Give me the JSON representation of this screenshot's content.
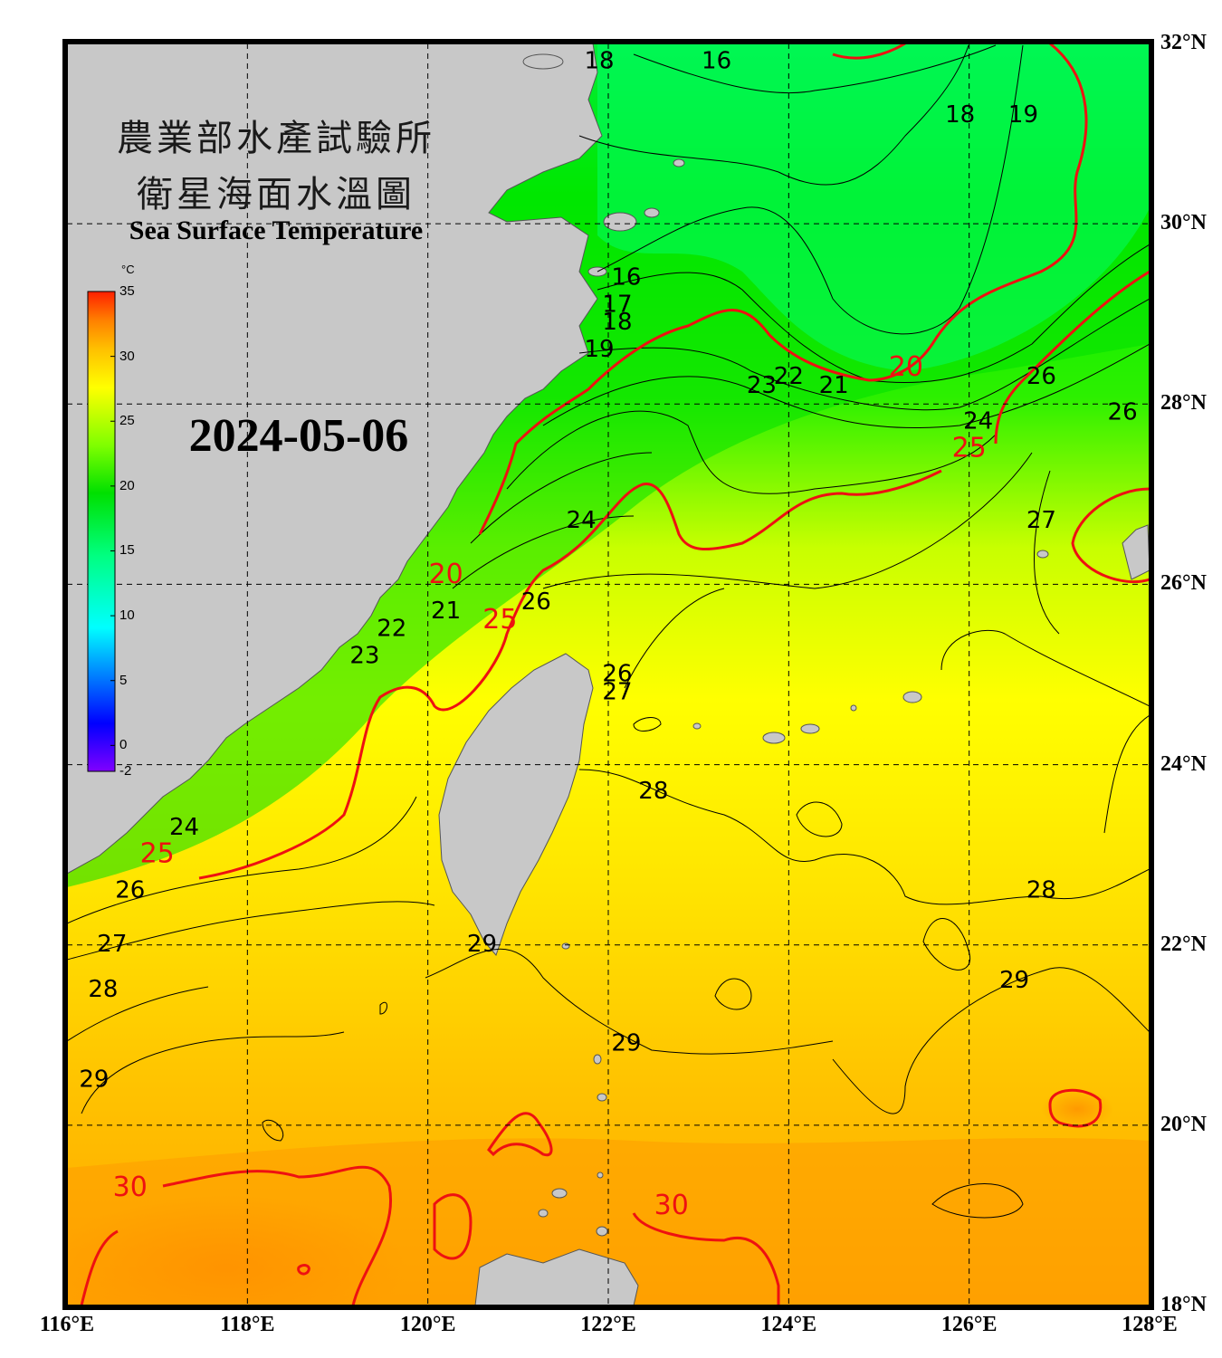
{
  "title_cn_line1": "農業部水產試驗所",
  "title_cn_line2": "衛星海面水溫圖",
  "title_en": "Sea Surface Temperature",
  "date": "2024-05-06",
  "colorbar": {
    "unit": "°C",
    "min": -2,
    "max": 35,
    "ticks": [
      "35",
      "30",
      "25",
      "20",
      "15",
      "10",
      "5",
      "0",
      "-2"
    ],
    "stops": [
      "#8000ff",
      "#0000ff",
      "#0080ff",
      "#00ffff",
      "#00ff80",
      "#00e000",
      "#80ff00",
      "#ffff00",
      "#ffc000",
      "#ff8000",
      "#ff2000"
    ]
  },
  "lon_labels": [
    "116°E",
    "118°E",
    "120°E",
    "122°E",
    "124°E",
    "126°E",
    "128°E"
  ],
  "lat_labels": [
    "32°N",
    "30°N",
    "28°N",
    "26°N",
    "24°N",
    "22°N",
    "20°N",
    "18°N"
  ],
  "contour_labels": [
    {
      "text": "16",
      "lon": 123.2,
      "lat": 31.8,
      "major": false
    },
    {
      "text": "18",
      "lon": 121.9,
      "lat": 31.8,
      "major": false
    },
    {
      "text": "18",
      "lon": 125.9,
      "lat": 31.2,
      "major": false
    },
    {
      "text": "19",
      "lon": 126.6,
      "lat": 31.2,
      "major": false
    },
    {
      "text": "16",
      "lon": 122.2,
      "lat": 29.4,
      "major": false
    },
    {
      "text": "17",
      "lon": 122.1,
      "lat": 29.1,
      "major": false
    },
    {
      "text": "18",
      "lon": 122.1,
      "lat": 28.9,
      "major": false
    },
    {
      "text": "19",
      "lon": 121.9,
      "lat": 28.6,
      "major": false
    },
    {
      "text": "23",
      "lon": 123.7,
      "lat": 28.2,
      "major": false
    },
    {
      "text": "22",
      "lon": 124.0,
      "lat": 28.3,
      "major": false
    },
    {
      "text": "21",
      "lon": 124.5,
      "lat": 28.2,
      "major": false
    },
    {
      "text": "20",
      "lon": 125.3,
      "lat": 28.4,
      "major": true
    },
    {
      "text": "24",
      "lon": 126.1,
      "lat": 27.8,
      "major": false
    },
    {
      "text": "25",
      "lon": 126.0,
      "lat": 27.5,
      "major": true
    },
    {
      "text": "26",
      "lon": 126.8,
      "lat": 28.3,
      "major": false
    },
    {
      "text": "26",
      "lon": 127.7,
      "lat": 27.9,
      "major": false
    },
    {
      "text": "27",
      "lon": 126.8,
      "lat": 26.7,
      "major": false
    },
    {
      "text": "24",
      "lon": 121.7,
      "lat": 26.7,
      "major": false
    },
    {
      "text": "20",
      "lon": 120.2,
      "lat": 26.1,
      "major": true
    },
    {
      "text": "26",
      "lon": 121.2,
      "lat": 25.8,
      "major": false
    },
    {
      "text": "25",
      "lon": 120.8,
      "lat": 25.6,
      "major": true
    },
    {
      "text": "21",
      "lon": 120.2,
      "lat": 25.7,
      "major": false
    },
    {
      "text": "22",
      "lon": 119.6,
      "lat": 25.5,
      "major": false
    },
    {
      "text": "23",
      "lon": 119.3,
      "lat": 25.2,
      "major": false
    },
    {
      "text": "26",
      "lon": 122.1,
      "lat": 25.0,
      "major": false
    },
    {
      "text": "27",
      "lon": 122.1,
      "lat": 24.8,
      "major": false
    },
    {
      "text": "28",
      "lon": 122.5,
      "lat": 23.7,
      "major": false
    },
    {
      "text": "24",
      "lon": 117.3,
      "lat": 23.3,
      "major": false
    },
    {
      "text": "25",
      "lon": 117.0,
      "lat": 23.0,
      "major": true
    },
    {
      "text": "26",
      "lon": 116.7,
      "lat": 22.6,
      "major": false
    },
    {
      "text": "27",
      "lon": 116.5,
      "lat": 22.0,
      "major": false
    },
    {
      "text": "28",
      "lon": 116.4,
      "lat": 21.5,
      "major": false
    },
    {
      "text": "28",
      "lon": 126.8,
      "lat": 22.6,
      "major": false
    },
    {
      "text": "29",
      "lon": 120.6,
      "lat": 22.0,
      "major": false
    },
    {
      "text": "29",
      "lon": 126.5,
      "lat": 21.6,
      "major": false
    },
    {
      "text": "29",
      "lon": 122.2,
      "lat": 20.9,
      "major": false
    },
    {
      "text": "29",
      "lon": 116.3,
      "lat": 20.5,
      "major": false
    },
    {
      "text": "30",
      "lon": 116.7,
      "lat": 19.3,
      "major": true
    },
    {
      "text": "30",
      "lon": 122.7,
      "lat": 19.1,
      "major": true
    }
  ]
}
